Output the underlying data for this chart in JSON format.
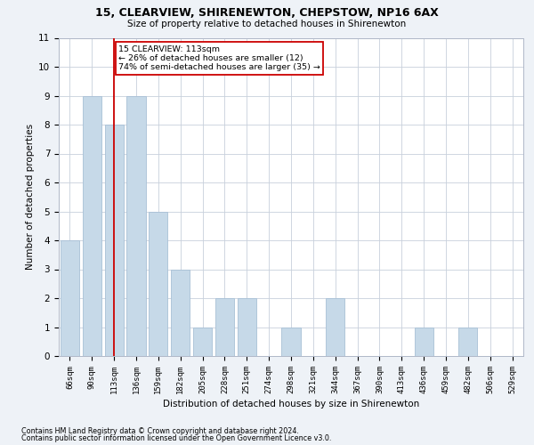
{
  "title1": "15, CLEARVIEW, SHIRENEWTON, CHEPSTOW, NP16 6AX",
  "title2": "Size of property relative to detached houses in Shirenewton",
  "xlabel": "Distribution of detached houses by size in Shirenewton",
  "ylabel": "Number of detached properties",
  "categories": [
    "66sqm",
    "90sqm",
    "113sqm",
    "136sqm",
    "159sqm",
    "182sqm",
    "205sqm",
    "228sqm",
    "251sqm",
    "274sqm",
    "298sqm",
    "321sqm",
    "344sqm",
    "367sqm",
    "390sqm",
    "413sqm",
    "436sqm",
    "459sqm",
    "482sqm",
    "506sqm",
    "529sqm"
  ],
  "values": [
    4,
    9,
    8,
    9,
    5,
    3,
    1,
    2,
    2,
    0,
    1,
    0,
    2,
    0,
    0,
    0,
    1,
    0,
    1,
    0,
    0
  ],
  "bar_color": "#c6d9e8",
  "bar_edge_color": "#a8c0d6",
  "marker_index": 2,
  "marker_color": "#cc0000",
  "ylim": [
    0,
    11
  ],
  "yticks": [
    0,
    1,
    2,
    3,
    4,
    5,
    6,
    7,
    8,
    9,
    10,
    11
  ],
  "annotation_line1": "15 CLEARVIEW: 113sqm",
  "annotation_line2": "← 26% of detached houses are smaller (12)",
  "annotation_line3": "74% of semi-detached houses are larger (35) →",
  "footnote1": "Contains HM Land Registry data © Crown copyright and database right 2024.",
  "footnote2": "Contains public sector information licensed under the Open Government Licence v3.0.",
  "background_color": "#eef2f7",
  "plot_bg_color": "#ffffff",
  "grid_color": "#c8d0dc"
}
